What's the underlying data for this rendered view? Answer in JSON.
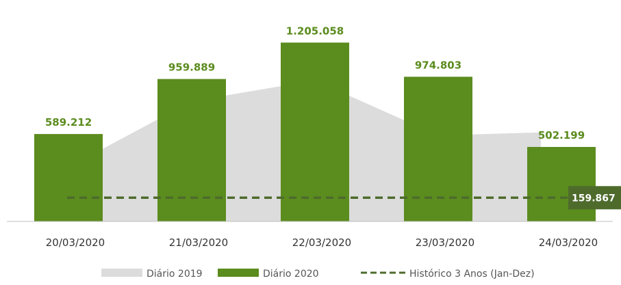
{
  "chart_data": {
    "type": "bar",
    "categories": [
      "20/03/2020",
      "21/03/2020",
      "22/03/2020",
      "23/03/2020",
      "24/03/2020"
    ],
    "series": [
      {
        "name": "Diário 2020",
        "type": "bar",
        "color": "#5b8c1e",
        "values": [
          589212,
          959889,
          1205058,
          974803,
          502199
        ],
        "labels": [
          "589.212",
          "959.889",
          "1.205.058",
          "974.803",
          "502.199"
        ]
      },
      {
        "name": "Diário 2019",
        "type": "area",
        "color": "#dcdcdc",
        "values": [
          440000,
          810000,
          950000,
          580000,
          600000
        ]
      },
      {
        "name": "Histórico 3 Anos (Jan-Dez)",
        "type": "line",
        "style": "dashed",
        "color": "#4e6b2c",
        "values": [
          159867,
          159867,
          159867,
          159867,
          159867
        ]
      }
    ],
    "historical_label": "159.867",
    "ylim": [
      0,
      1400000
    ],
    "grid": false,
    "legend_position": "bottom"
  }
}
